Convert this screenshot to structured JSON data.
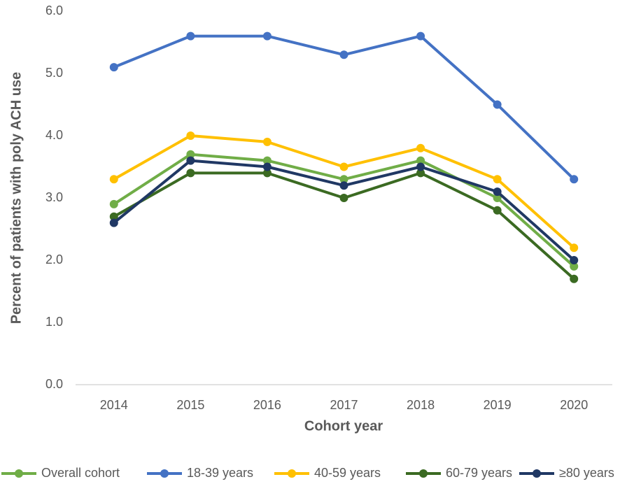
{
  "chart_data": {
    "type": "line",
    "x_label": "Cohort year",
    "y_label": "Percent of patients with poly ACH use",
    "categories": [
      "2014",
      "2015",
      "2016",
      "2017",
      "2018",
      "2019",
      "2020"
    ],
    "series": [
      {
        "name": "Overall cohort",
        "color": "#70ad47",
        "values": [
          2.9,
          3.7,
          3.6,
          3.3,
          3.6,
          3.0,
          1.9
        ]
      },
      {
        "name": "18-39 years",
        "color": "#4472c4",
        "values": [
          5.1,
          5.6,
          5.6,
          5.3,
          5.6,
          4.5,
          3.3
        ]
      },
      {
        "name": "40-59 years",
        "color": "#ffc000",
        "values": [
          3.3,
          4.0,
          3.9,
          3.5,
          3.8,
          3.3,
          2.2
        ]
      },
      {
        "name": "60-79 years",
        "color": "#3b6a22",
        "values": [
          2.7,
          3.4,
          3.4,
          3.0,
          3.4,
          2.8,
          1.7
        ]
      },
      {
        "name": "≥80 years",
        "color": "#203864",
        "values": [
          2.6,
          3.6,
          3.5,
          3.2,
          3.5,
          3.1,
          2.0
        ]
      }
    ],
    "ylim": [
      0,
      6
    ],
    "yticks": [
      {
        "value": 0,
        "label": "0.0"
      },
      {
        "value": 1,
        "label": "1.0"
      },
      {
        "value": 2,
        "label": "2.0"
      },
      {
        "value": 3,
        "label": "3.0"
      },
      {
        "value": 4,
        "label": "4.0"
      },
      {
        "value": 5,
        "label": "5.0"
      },
      {
        "value": 6,
        "label": "6.0"
      }
    ],
    "grid": false,
    "legend": "bottom"
  }
}
